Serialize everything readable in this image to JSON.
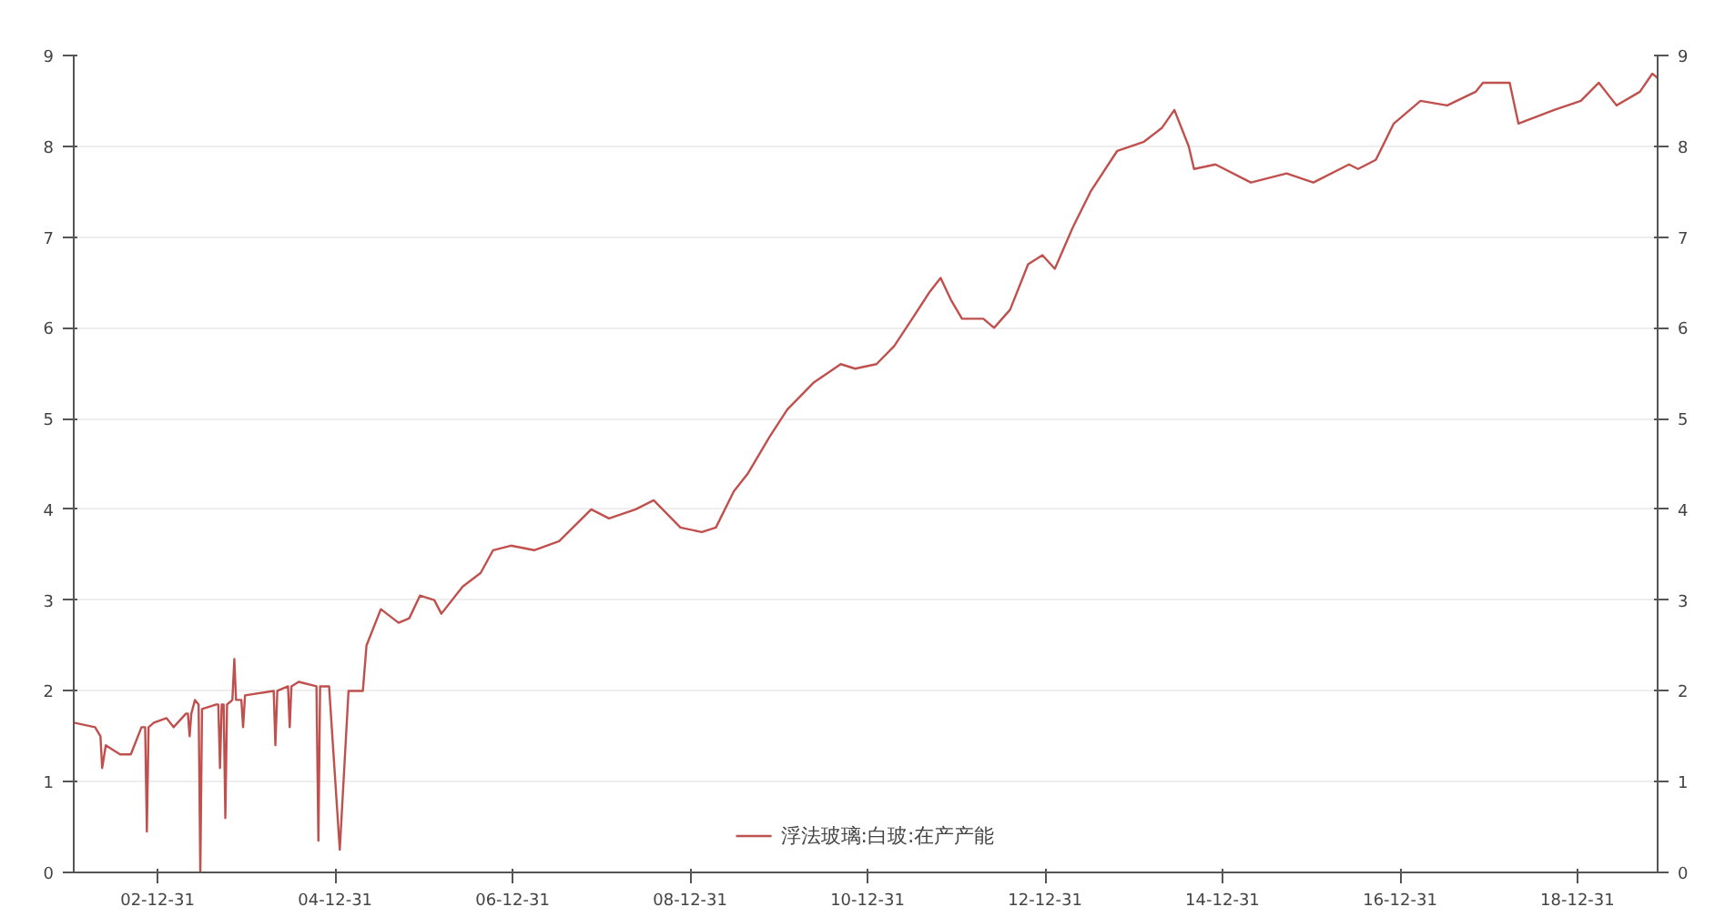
{
  "chart_data": {
    "type": "line",
    "x": [
      "2002-01-20",
      "2002-04-18",
      "2002-05-10",
      "2002-05-17",
      "2002-06-01",
      "2002-06-30",
      "2002-07-30",
      "2002-09-12",
      "2002-10-26",
      "2002-11-10",
      "2002-11-17",
      "2002-11-24",
      "2002-12-16",
      "2003-02-06",
      "2003-03-07",
      "2003-04-27",
      "2003-05-05",
      "2003-05-12",
      "2003-05-19",
      "2003-06-03",
      "2003-06-18",
      "2003-06-25",
      "2003-07-02",
      "2003-08-30",
      "2003-09-07",
      "2003-09-14",
      "2003-09-21",
      "2003-09-29",
      "2003-10-06",
      "2003-10-13",
      "2003-11-04",
      "2003-11-12",
      "2003-11-19",
      "2003-12-11",
      "2003-12-18",
      "2003-12-26",
      "2004-04-22",
      "2004-04-29",
      "2004-05-07",
      "2004-06-20",
      "2004-06-27",
      "2004-07-04",
      "2004-08-03",
      "2004-10-15",
      "2004-10-23",
      "2004-10-30",
      "2004-12-06",
      "2005-01-19",
      "2005-02-24",
      "2005-04-24",
      "2005-05-09",
      "2005-07-07",
      "2005-09-18",
      "2005-11-01",
      "2005-12-15",
      "2006-02-12",
      "2006-03-13",
      "2006-06-09",
      "2006-08-22",
      "2006-10-12",
      "2006-12-24",
      "2007-03-30",
      "2007-07-11",
      "2007-11-20",
      "2008-02-01",
      "2008-05-21",
      "2008-08-03",
      "2008-11-21",
      "2009-02-17",
      "2009-04-16",
      "2009-06-29",
      "2009-08-27",
      "2009-11-23",
      "2010-02-04",
      "2010-05-25",
      "2010-09-12",
      "2010-11-10",
      "2011-02-06",
      "2011-04-20",
      "2011-07-03",
      "2011-09-14",
      "2011-10-28",
      "2011-12-11",
      "2012-01-24",
      "2012-04-21",
      "2012-06-04",
      "2012-08-09",
      "2012-10-22",
      "2012-12-20",
      "2013-02-09",
      "2013-04-23",
      "2013-07-06",
      "2013-10-24",
      "2014-02-11",
      "2014-04-25",
      "2014-06-16",
      "2014-08-14",
      "2014-09-05",
      "2014-12-02",
      "2015-04-27",
      "2015-09-21",
      "2016-01-09",
      "2016-06-04",
      "2016-07-11",
      "2016-09-22",
      "2016-12-05",
      "2017-03-25",
      "2017-07-13",
      "2017-11-07",
      "2017-12-07",
      "2018-03-27",
      "2018-05-02",
      "2018-09-26",
      "2019-01-14",
      "2019-03-29",
      "2019-06-10",
      "2019-09-14",
      "2019-11-04",
      "2019-11-26"
    ],
    "series": [
      {
        "name": "浮法玻璃:白玻:在产产能",
        "color": "#c0504d",
        "values": [
          1.65,
          1.6,
          1.5,
          1.15,
          1.4,
          1.35,
          1.3,
          1.3,
          1.6,
          1.6,
          0.45,
          1.6,
          1.65,
          1.7,
          1.6,
          1.75,
          1.75,
          1.5,
          1.75,
          1.9,
          1.85,
          0,
          1.8,
          1.85,
          1.85,
          1.15,
          1.85,
          1.85,
          0.6,
          1.85,
          1.9,
          2.35,
          1.9,
          1.9,
          1.6,
          1.95,
          2.0,
          1.4,
          2.0,
          2.05,
          1.6,
          2.05,
          2.1,
          2.05,
          0.35,
          2.05,
          2.05,
          0.25,
          2.0,
          2.0,
          2.5,
          2.9,
          2.75,
          2.8,
          3.05,
          3.0,
          2.85,
          3.15,
          3.3,
          3.55,
          3.6,
          3.55,
          3.65,
          4.0,
          3.9,
          4.0,
          4.1,
          3.8,
          3.75,
          3.8,
          4.2,
          4.4,
          4.8,
          5.1,
          5.4,
          5.6,
          5.55,
          5.6,
          5.8,
          6.1,
          6.4,
          6.55,
          6.3,
          6.1,
          6.1,
          6.0,
          6.2,
          6.7,
          6.8,
          6.65,
          7.1,
          7.5,
          7.95,
          8.05,
          8.2,
          8.4,
          8.0,
          7.75,
          7.8,
          7.6,
          7.7,
          7.6,
          7.8,
          7.75,
          7.85,
          8.25,
          8.5,
          8.45,
          8.6,
          8.7,
          8.7,
          8.25,
          8.4,
          8.5,
          8.7,
          8.45,
          8.6,
          8.8,
          8.75
        ]
      }
    ],
    "xlim": [
      "2002-01-20",
      "2019-11-26"
    ],
    "xticks": [
      {
        "value": "2002-12-31",
        "label": "02-12-31"
      },
      {
        "value": "2004-12-31",
        "label": "04-12-31"
      },
      {
        "value": "2006-12-31",
        "label": "06-12-31"
      },
      {
        "value": "2008-12-31",
        "label": "08-12-31"
      },
      {
        "value": "2010-12-31",
        "label": "10-12-31"
      },
      {
        "value": "2012-12-31",
        "label": "12-12-31"
      },
      {
        "value": "2014-12-31",
        "label": "14-12-31"
      },
      {
        "value": "2016-12-31",
        "label": "16-12-31"
      },
      {
        "value": "2018-12-31",
        "label": "18-12-31"
      }
    ],
    "ylim": [
      0,
      9
    ],
    "yticks": [
      0,
      1,
      2,
      3,
      4,
      5,
      6,
      7,
      8,
      9
    ],
    "y2lim": [
      0,
      9
    ],
    "y2ticks": [
      0,
      1,
      2,
      3,
      4,
      5,
      6,
      7,
      8,
      9
    ],
    "grid": "y",
    "legend": "bottom",
    "marker": "none",
    "line_style": "solid"
  }
}
